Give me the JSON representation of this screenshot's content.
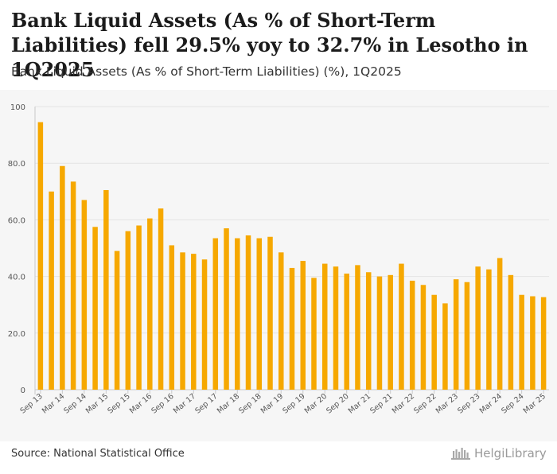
{
  "header": {
    "title": "Bank Liquid Assets (As % of Short-Term Liabilities) fell 29.5% yoy to 32.7% in Lesotho in 1Q2025",
    "subtitle": "Bank Liquid Assets (As % of Short-Term Liabilities) (%), 1Q2025"
  },
  "footer": {
    "source": "Source: National Statistical Office",
    "brand": "HelgiLibrary"
  },
  "colors": {
    "bar": "#f6a800",
    "grid": "#e4e4e4",
    "axis_text": "#555555"
  },
  "chart_data": {
    "type": "bar",
    "title": "Bank Liquid Assets (As % of Short-Term Liabilities) (%), 1Q2025",
    "xlabel": "",
    "ylabel": "",
    "ylim": [
      0,
      100
    ],
    "y_ticks": [
      0,
      20,
      40,
      60,
      80,
      100
    ],
    "y_tick_labels": [
      "0",
      "20.0",
      "40.0",
      "60.0",
      "80.0",
      "100"
    ],
    "grid": true,
    "categories": [
      "Sep 13",
      "Dec 13",
      "Mar 14",
      "Jun 14",
      "Sep 14",
      "Dec 14",
      "Mar 15",
      "Jun 15",
      "Sep 15",
      "Dec 15",
      "Mar 16",
      "Jun 16",
      "Sep 16",
      "Dec 16",
      "Mar 17",
      "Jun 17",
      "Sep 17",
      "Dec 17",
      "Mar 18",
      "Jun 18",
      "Sep 18",
      "Dec 18",
      "Mar 19",
      "Jun 19",
      "Sep 19",
      "Dec 19",
      "Mar 20",
      "Jun 20",
      "Sep 20",
      "Dec 20",
      "Mar 21",
      "Jun 21",
      "Sep 21",
      "Dec 21",
      "Mar 22",
      "Jun 22",
      "Sep 22",
      "Dec 22",
      "Mar 23",
      "Jun 23",
      "Sep 23",
      "Dec 23",
      "Mar 24",
      "Jun 24",
      "Sep 24",
      "Dec 24",
      "Mar 25"
    ],
    "x_tick_labels": [
      "Sep 13",
      "Mar 14",
      "Sep 14",
      "Mar 15",
      "Sep 15",
      "Mar 16",
      "Sep 16",
      "Mar 17",
      "Sep 17",
      "Mar 18",
      "Sep 18",
      "Mar 19",
      "Sep 19",
      "Mar 20",
      "Sep 20",
      "Mar 21",
      "Sep 21",
      "Mar 22",
      "Sep 22",
      "Mar 23",
      "Sep 23",
      "Mar 24",
      "Sep 24",
      "Mar 25"
    ],
    "values": [
      94.5,
      70.0,
      79.0,
      73.5,
      67.0,
      57.5,
      70.5,
      49.0,
      56.0,
      58.0,
      60.5,
      64.0,
      51.0,
      48.5,
      48.0,
      46.0,
      53.5,
      57.0,
      53.5,
      54.5,
      53.5,
      54.0,
      48.5,
      43.0,
      45.5,
      39.5,
      44.5,
      43.5,
      41.0,
      44.0,
      41.5,
      40.0,
      40.5,
      44.5,
      38.5,
      37.0,
      33.5,
      30.5,
      39.0,
      38.0,
      43.5,
      42.5,
      46.5,
      40.5,
      33.5,
      33.0,
      32.7
    ]
  }
}
